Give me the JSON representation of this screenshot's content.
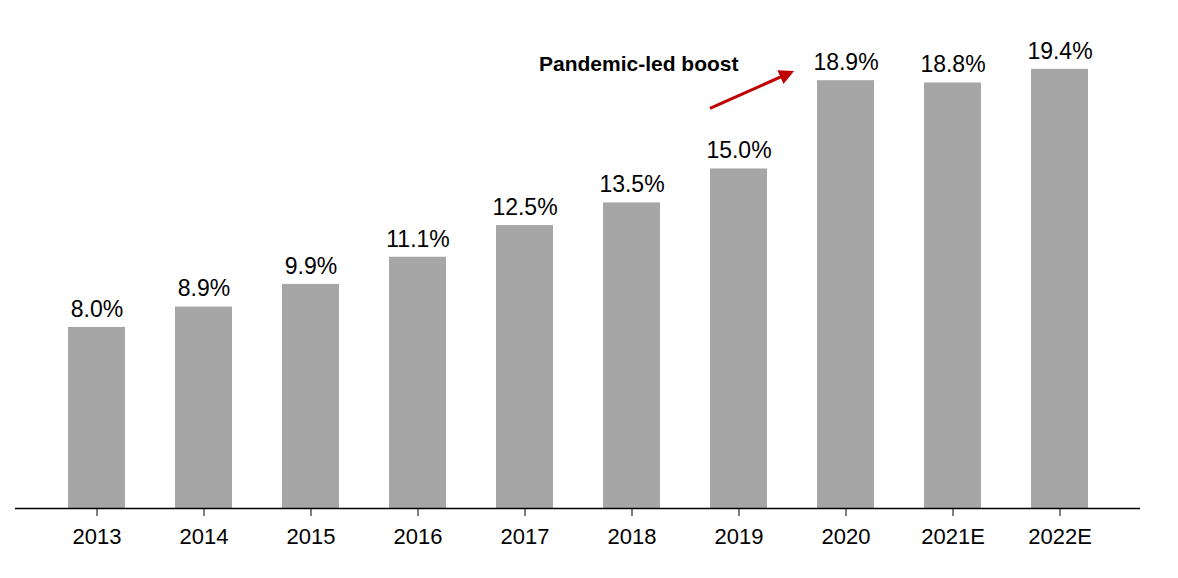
{
  "chart_data": {
    "type": "bar",
    "categories": [
      "2013",
      "2014",
      "2015",
      "2016",
      "2017",
      "2018",
      "2019",
      "2020",
      "2021E",
      "2022E"
    ],
    "values": [
      8.0,
      8.9,
      9.9,
      11.1,
      12.5,
      13.5,
      15.0,
      18.9,
      18.8,
      19.4
    ],
    "value_labels": [
      "8.0%",
      "8.9%",
      "9.9%",
      "11.1%",
      "12.5%",
      "13.5%",
      "15.0%",
      "18.9%",
      "18.8%",
      "19.4%"
    ],
    "color": "#a6a6a6",
    "ylim": [
      0,
      22
    ],
    "data_labels": true,
    "tick_labels": "x",
    "annotations": [
      {
        "text": "Pandemic-led boost",
        "from": "2019",
        "to": "2020",
        "color": "#c00000"
      }
    ]
  }
}
